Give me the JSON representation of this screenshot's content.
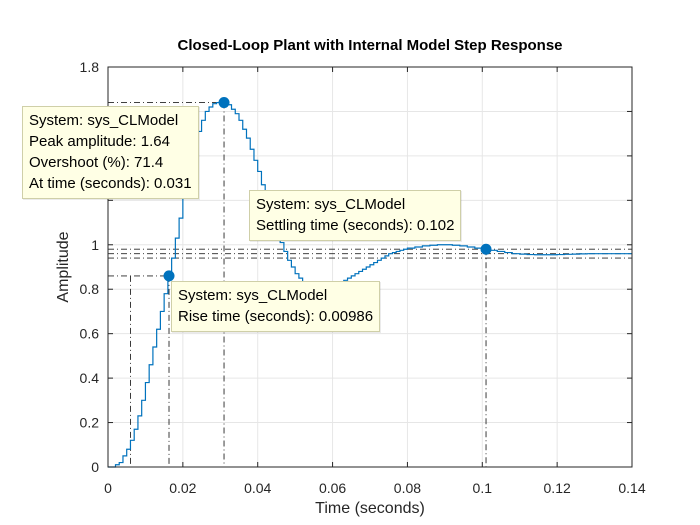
{
  "chart_data": {
    "type": "line",
    "title": "Closed-Loop Plant with Internal Model Step Response",
    "xlabel": "Time (seconds)",
    "ylabel": "Amplitude",
    "xlim": [
      0,
      0.14
    ],
    "ylim": [
      0,
      1.8
    ],
    "xticks": [
      0,
      0.02,
      0.04,
      0.06,
      0.08,
      0.1,
      0.12,
      0.14
    ],
    "xtick_labels": [
      "0",
      "0.02",
      "0.04",
      "0.06",
      "0.08",
      "0.1",
      "0.12",
      "0.14"
    ],
    "yticks": [
      0,
      0.2,
      0.4,
      0.6,
      0.8,
      1,
      1.2,
      1.4,
      1.6,
      1.8
    ],
    "ytick_labels": [
      "0",
      "0.2",
      "0.4",
      "0.6",
      "0.8",
      "1",
      "",
      "",
      "",
      "1.8"
    ],
    "grid": true,
    "line_color": "#0072bd",
    "series": [
      {
        "x": [
          0,
          0.001,
          0.002,
          0.003,
          0.004,
          0.005,
          0.006,
          0.007,
          0.008,
          0.009,
          0.01,
          0.011,
          0.012,
          0.013,
          0.014,
          0.015,
          0.016,
          0.017,
          0.018,
          0.019,
          0.02,
          0.021,
          0.022,
          0.023,
          0.024,
          0.025,
          0.026,
          0.027,
          0.028,
          0.029,
          0.03,
          0.031,
          0.032,
          0.033,
          0.034,
          0.035,
          0.036,
          0.037,
          0.038,
          0.039,
          0.04,
          0.041,
          0.042,
          0.043,
          0.044,
          0.045,
          0.046,
          0.047,
          0.048,
          0.049,
          0.05,
          0.051,
          0.052,
          0.053,
          0.054,
          0.055,
          0.056,
          0.057,
          0.058,
          0.059,
          0.06,
          0.061,
          0.062,
          0.063,
          0.064,
          0.065,
          0.066,
          0.067,
          0.068,
          0.069,
          0.07,
          0.071,
          0.072,
          0.073,
          0.074,
          0.075,
          0.076,
          0.077,
          0.078,
          0.079,
          0.08,
          0.082,
          0.084,
          0.086,
          0.088,
          0.09,
          0.092,
          0.094,
          0.096,
          0.098,
          0.1,
          0.102,
          0.104,
          0.106,
          0.108,
          0.11,
          0.112,
          0.114,
          0.116,
          0.118,
          0.12,
          0.122,
          0.124,
          0.126,
          0.128,
          0.13,
          0.132,
          0.134,
          0.136,
          0.138,
          0.14
        ],
        "y": [
          0,
          0.0,
          0.01,
          0.02,
          0.05,
          0.08,
          0.12,
          0.17,
          0.23,
          0.3,
          0.38,
          0.46,
          0.54,
          0.62,
          0.7,
          0.78,
          0.86,
          0.94,
          1.03,
          1.12,
          1.21,
          1.3,
          1.38,
          1.45,
          1.51,
          1.56,
          1.6,
          1.62,
          1.635,
          1.64,
          1.64,
          1.64,
          1.63,
          1.61,
          1.59,
          1.56,
          1.52,
          1.48,
          1.43,
          1.38,
          1.33,
          1.27,
          1.22,
          1.16,
          1.11,
          1.06,
          1.01,
          0.97,
          0.93,
          0.9,
          0.87,
          0.85,
          0.83,
          0.82,
          0.81,
          0.805,
          0.8,
          0.8,
          0.8,
          0.805,
          0.81,
          0.82,
          0.83,
          0.84,
          0.85,
          0.86,
          0.87,
          0.88,
          0.89,
          0.9,
          0.91,
          0.92,
          0.93,
          0.94,
          0.95,
          0.96,
          0.965,
          0.97,
          0.975,
          0.98,
          0.985,
          0.99,
          0.995,
          0.998,
          1.0,
          1.0,
          0.998,
          0.995,
          0.99,
          0.985,
          0.98,
          0.975,
          0.97,
          0.965,
          0.96,
          0.958,
          0.956,
          0.955,
          0.955,
          0.955,
          0.956,
          0.957,
          0.958,
          0.959,
          0.96,
          0.96,
          0.96,
          0.96,
          0.96,
          0.96,
          0.96
        ]
      }
    ],
    "reference_lines": {
      "y_values": [
        0.86,
        0.98,
        0.96,
        0.94
      ],
      "x_values": [
        0.0163,
        0.031,
        0.101,
        0.006
      ]
    },
    "markers": [
      {
        "x": 0.0163,
        "y": 0.86
      },
      {
        "x": 0.031,
        "y": 1.64
      },
      {
        "x": 0.101,
        "y": 0.98
      }
    ],
    "datatips": [
      {
        "name": "peak",
        "lines": [
          "System: sys_CLModel",
          "Peak amplitude: 1.64",
          "Overshoot (%): 71.4",
          "At time (seconds): 0.031"
        ]
      },
      {
        "name": "settling",
        "lines": [
          "System: sys_CLModel",
          "Settling time (seconds): 0.102"
        ]
      },
      {
        "name": "rise",
        "lines": [
          "System: sys_CLModel",
          "Rise time (seconds): 0.00986"
        ]
      }
    ]
  }
}
